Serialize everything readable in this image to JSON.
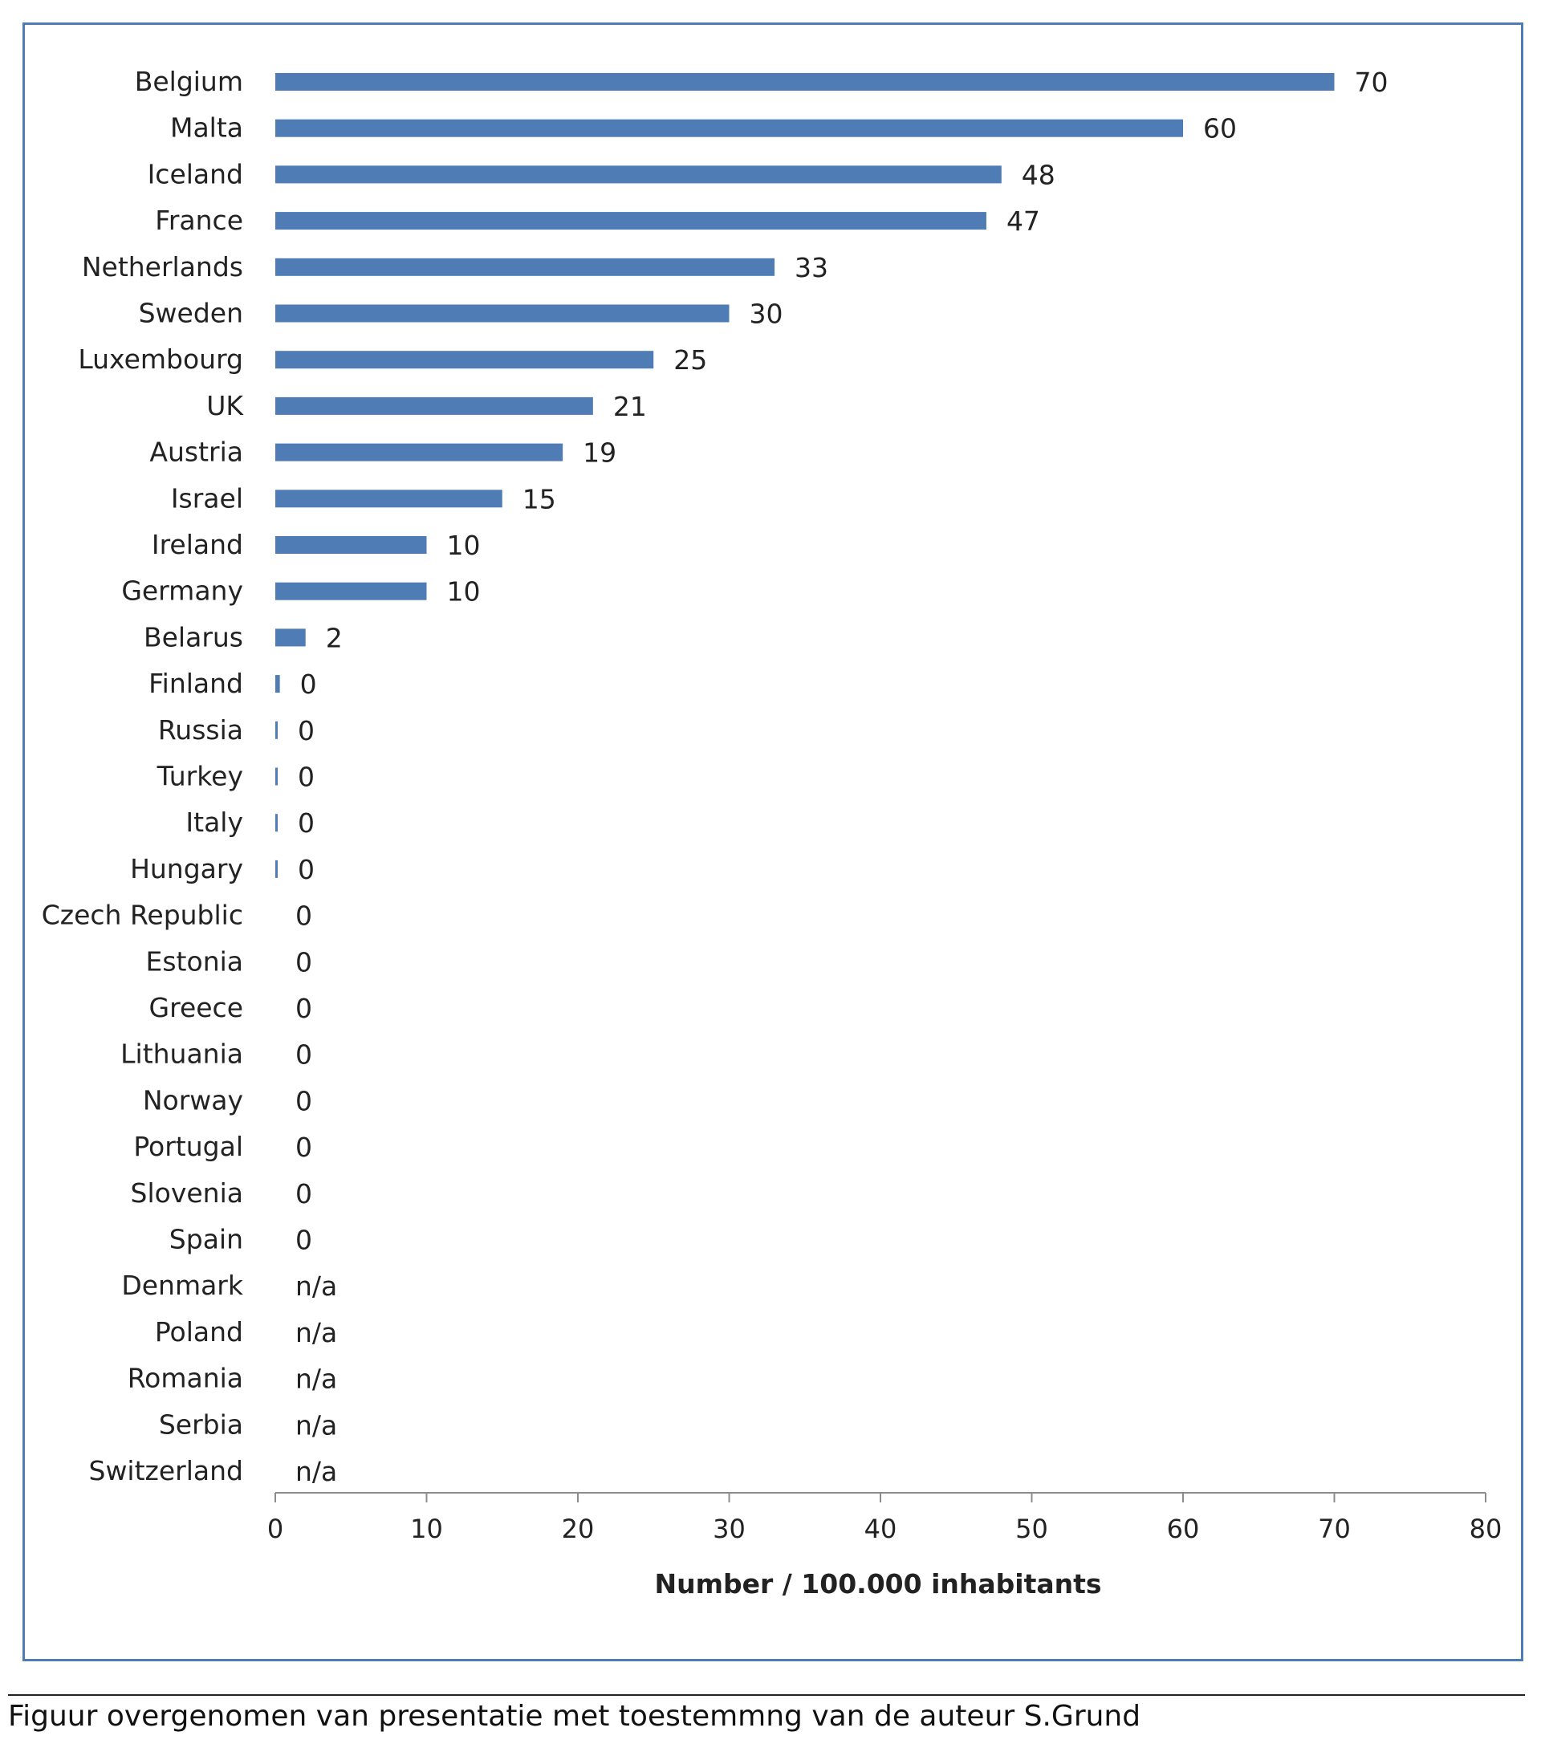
{
  "chart_data": {
    "type": "bar",
    "orientation": "horizontal",
    "categories": [
      "Belgium",
      "Malta",
      "Iceland",
      "France",
      "Netherlands",
      "Sweden",
      "Luxembourg",
      "UK",
      "Austria",
      "Israel",
      "Ireland",
      "Germany",
      "Belarus",
      "Finland",
      "Russia",
      "Turkey",
      "Italy",
      "Hungary",
      "Czech Republic",
      "Estonia",
      "Greece",
      "Lithuania",
      "Norway",
      "Portugal",
      "Slovenia",
      "Spain",
      "Denmark",
      "Poland",
      "Romania",
      "Serbia",
      "Switzerland"
    ],
    "values": [
      70,
      60,
      48,
      47,
      33,
      30,
      25,
      21,
      19,
      15,
      10,
      10,
      2,
      0.3,
      0.15,
      0.15,
      0.15,
      0.15,
      0,
      0,
      0,
      0,
      0,
      0,
      0,
      0,
      null,
      null,
      null,
      null,
      null
    ],
    "data_labels": [
      "70",
      "60",
      "48",
      "47",
      "33",
      "30",
      "25",
      "21",
      "19",
      "15",
      "10",
      "10",
      "2",
      "0",
      "0",
      "0",
      "0",
      "0",
      "0",
      "0",
      "0",
      "0",
      "0",
      "0",
      "0",
      "0",
      "n/a",
      "n/a",
      "n/a",
      "n/a",
      "n/a"
    ],
    "xlabel": "Number / 100.000 inhabitants",
    "xticks": [
      0,
      10,
      20,
      30,
      40,
      50,
      60,
      70,
      80
    ],
    "xlim": [
      0,
      80
    ],
    "bar_color": "#4f7cb5",
    "grid": false,
    "legend": "none"
  },
  "caption": "Figuur overgenomen van presentatie met toestemmng van de auteur S.Grund"
}
